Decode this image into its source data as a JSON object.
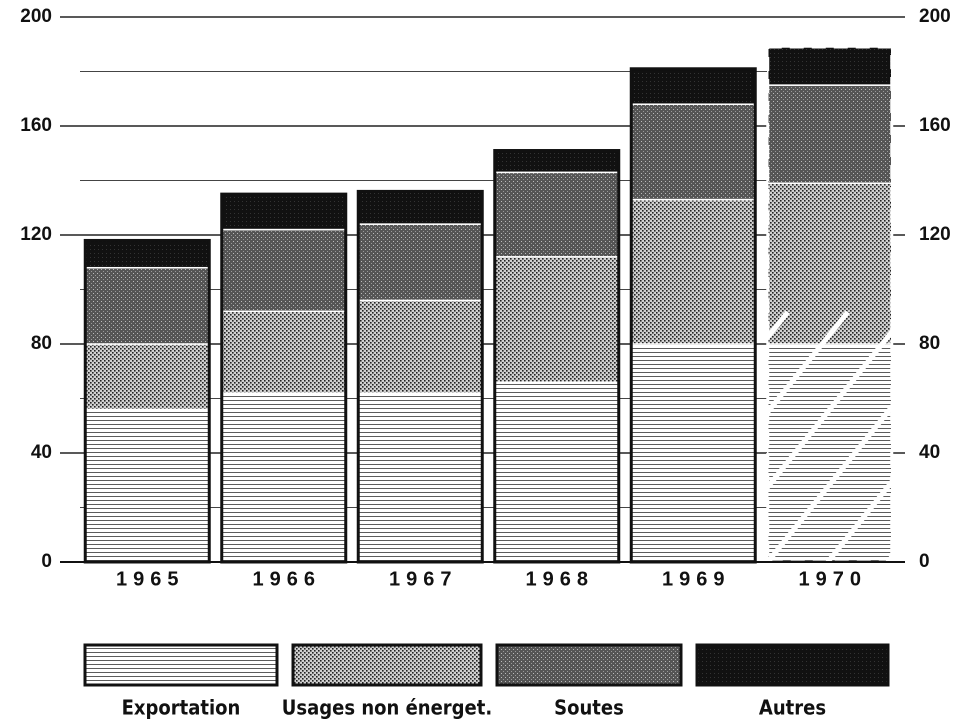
{
  "chart_data": {
    "type": "stacked_bar",
    "categories": [
      "1965",
      "1966",
      "1967",
      "1968",
      "1969",
      "1970"
    ],
    "series": [
      {
        "name": "Exportation",
        "color": "#ffffff",
        "values": [
          56,
          62,
          62,
          66,
          80,
          80
        ]
      },
      {
        "name": "Usages non énerget.",
        "color": "#d0d0d0",
        "values": [
          24,
          30,
          34,
          46,
          53,
          59
        ]
      },
      {
        "name": "Soutes",
        "color": "#555555",
        "values": [
          28,
          30,
          28,
          31,
          35,
          36
        ]
      },
      {
        "name": "Autres",
        "color": "#111111",
        "values": [
          10,
          13,
          12,
          8,
          13,
          14
        ]
      }
    ],
    "estimate": [
      false,
      false,
      false,
      false,
      false,
      true
    ],
    "ylim": [
      0,
      200
    ],
    "yticks": [
      0,
      40,
      80,
      120,
      160,
      200
    ],
    "minor_yticks": [
      20,
      60,
      100,
      140,
      180
    ],
    "grid": true
  }
}
